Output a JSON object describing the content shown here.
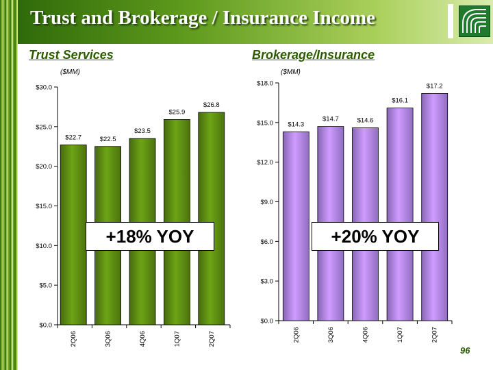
{
  "slide": {
    "title": "Trust and Brokerage / Insurance Income",
    "page_number": "96",
    "logo_icon": "bank-logo-icon",
    "colors": {
      "header_green": "#2f6a0a",
      "section_title": "#2d5a00"
    }
  },
  "trust": {
    "section_title": "Trust Services",
    "unit": "($MM)",
    "yoy": "+18% YOY"
  },
  "brokerage": {
    "section_title": "Brokerage/Insurance",
    "unit": "($MM)",
    "yoy": "+20% YOY"
  },
  "chart_data": [
    {
      "type": "bar",
      "id": "trust",
      "categories": [
        "2Q06",
        "3Q06",
        "4Q06",
        "1Q07",
        "2Q07"
      ],
      "values": [
        22.7,
        22.5,
        23.5,
        25.9,
        26.8
      ],
      "value_labels": [
        "$22.7",
        "$22.5",
        "$23.5",
        "$25.9",
        "$26.8"
      ],
      "ylim": [
        0,
        30
      ],
      "yticks": [
        0,
        5,
        10,
        15,
        20,
        25,
        30
      ],
      "ytick_labels": [
        "$0.0",
        "$5.0",
        "$10.0",
        "$15.0",
        "$20.0",
        "$25.0",
        "$30.0"
      ],
      "color": "#5f8f12",
      "grid": false
    },
    {
      "type": "bar",
      "id": "brokerage",
      "categories": [
        "2Q06",
        "3Q06",
        "4Q06",
        "1Q07",
        "2Q07"
      ],
      "values": [
        14.3,
        14.7,
        14.6,
        16.1,
        17.2
      ],
      "value_labels": [
        "$14.3",
        "$14.7",
        "$14.6",
        "$16.1",
        "$17.2"
      ],
      "ylim": [
        0,
        18
      ],
      "yticks": [
        0,
        3,
        6,
        9,
        12,
        15,
        18
      ],
      "ytick_labels": [
        "$0.0",
        "$3.0",
        "$6.0",
        "$9.0",
        "$12.0",
        "$15.0",
        "$18.0"
      ],
      "color": "#b488f0",
      "grid": false
    }
  ]
}
